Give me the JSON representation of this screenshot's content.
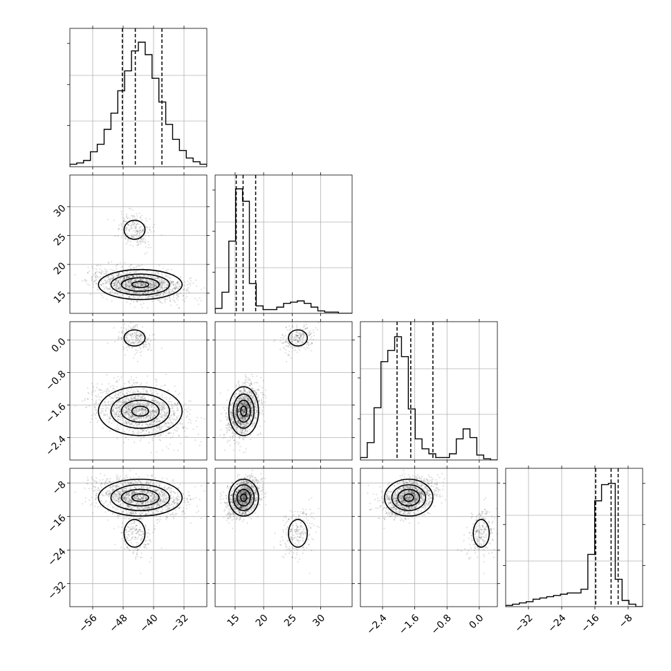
{
  "chart_data": {
    "type": "corner",
    "variables": [
      {
        "range": [
          -62,
          -26
        ],
        "ticks": [
          -56,
          -48,
          -40,
          -32
        ],
        "tick_labels": [
          "−56",
          "−48",
          "−40",
          "−32"
        ],
        "quantiles": [
          -48.2,
          -44.8,
          -37.8
        ],
        "hist": [
          0.02,
          0.03,
          0.05,
          0.12,
          0.18,
          0.3,
          0.43,
          0.61,
          0.77,
          0.93,
          1.0,
          0.9,
          0.71,
          0.52,
          0.34,
          0.22,
          0.13,
          0.07,
          0.04,
          0.02
        ]
      },
      {
        "range": [
          11.5,
          35.5
        ],
        "ticks": [
          15,
          20,
          25,
          30
        ],
        "tick_labels": [
          "15",
          "20",
          "25",
          "30"
        ],
        "quantiles": [
          15.2,
          16.4,
          18.6
        ],
        "hist": [
          0.04,
          0.17,
          0.58,
          1.0,
          0.9,
          0.24,
          0.06,
          0.03,
          0.03,
          0.05,
          0.08,
          0.09,
          0.1,
          0.08,
          0.05,
          0.02,
          0.01,
          0.01,
          0.0,
          0.0
        ]
      },
      {
        "range": [
          -2.95,
          0.45
        ],
        "ticks": [
          -2.4,
          -1.6,
          -0.8,
          0.0
        ],
        "tick_labels": [
          "−2.4",
          "−1.6",
          "−0.8",
          "0.0"
        ],
        "quantiles": [
          -2.04,
          -1.7,
          -1.15
        ],
        "hist": [
          0.02,
          0.14,
          0.42,
          0.79,
          0.88,
          0.99,
          0.83,
          0.41,
          0.17,
          0.09,
          0.05,
          0.02,
          0.02,
          0.05,
          0.17,
          0.25,
          0.18,
          0.04,
          0.01,
          0.0
        ]
      },
      {
        "range": [
          -37.5,
          -4.5
        ],
        "ticks": [
          -32,
          -24,
          -16,
          -8
        ],
        "tick_labels": [
          "−32",
          "−24",
          "−16",
          "−8"
        ],
        "quantiles": [
          -15.8,
          -12.1,
          -10.4
        ],
        "hist": [
          0.01,
          0.02,
          0.03,
          0.04,
          0.06,
          0.07,
          0.08,
          0.09,
          0.1,
          0.11,
          0.11,
          0.14,
          0.42,
          0.85,
          0.98,
          0.99,
          0.22,
          0.05,
          0.02,
          0.0
        ]
      }
    ],
    "clusters": [
      {
        "p": 0.14,
        "mean": [
          -45.0,
          26.0,
          0.05,
          -20.0
        ],
        "sd": [
          2.5,
          1.5,
          0.18,
          3.0
        ]
      },
      {
        "p": 0.86,
        "mean": [
          -43.5,
          16.5,
          -1.75,
          -11.5
        ],
        "sd": [
          5.5,
          1.3,
          0.3,
          2.2
        ]
      }
    ],
    "grid": true,
    "legend": ""
  }
}
